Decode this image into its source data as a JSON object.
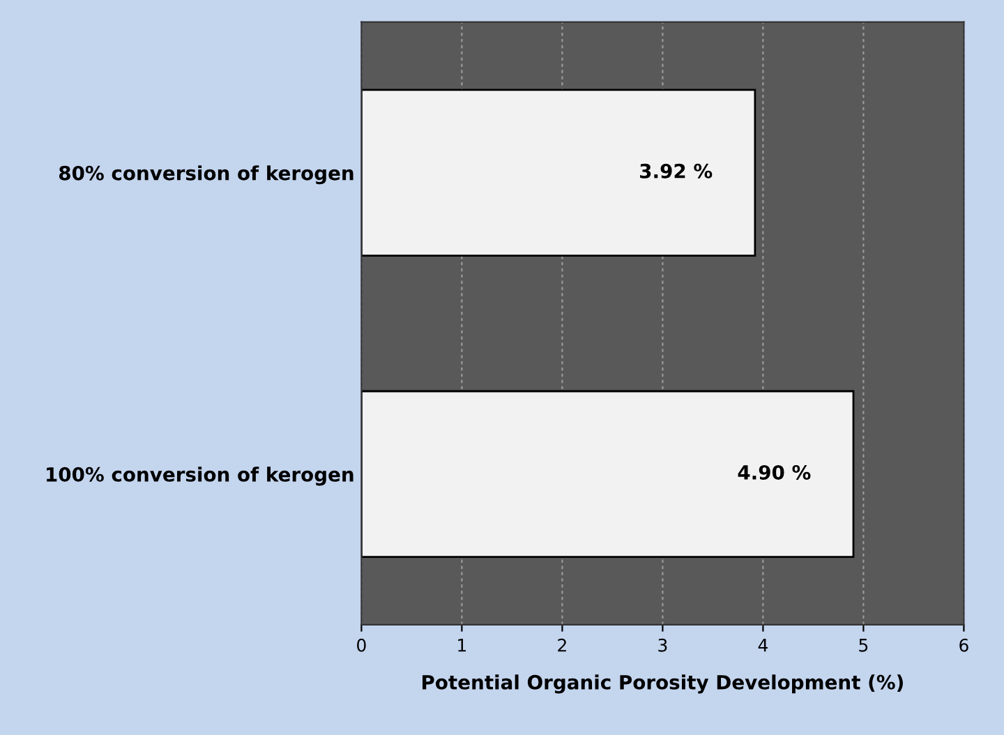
{
  "chart_data": {
    "type": "bar",
    "orientation": "horizontal",
    "categories": [
      "80% conversion of kerogen",
      "100% conversion of kerogen"
    ],
    "values": [
      3.92,
      4.9
    ],
    "color": "#f2f2f2",
    "value_labels": [
      "3.92 %",
      "4.90 %"
    ],
    "xlabel": "Potential Organic Porosity Development (%)",
    "xlim": [
      0,
      6
    ],
    "xticks": [
      0,
      1,
      2,
      3,
      4,
      5,
      6
    ],
    "grid": "x"
  }
}
